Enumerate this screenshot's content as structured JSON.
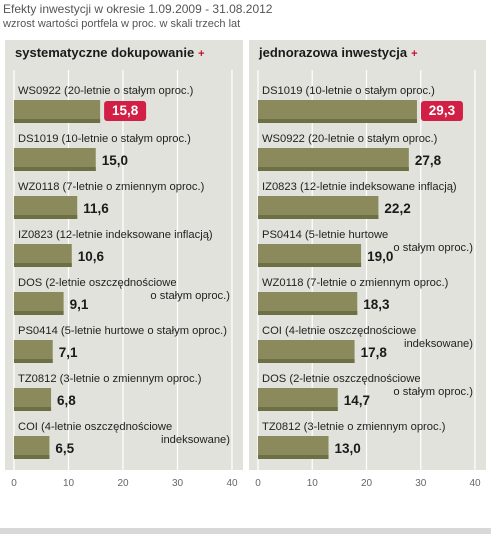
{
  "header": {
    "title": "Efekty inwestycji w okresie 1.09.2009 - 31.08.2012",
    "subtitle": "wzrost wartości portfela w proc. w skali trzech lat"
  },
  "colors": {
    "bar": "#8a8a5c",
    "bar_dark": "#6f6f45",
    "panel_bg": "#e2e2dc",
    "grid": "#ffffff",
    "highlight": "#d21f45",
    "axis_text": "#666666"
  },
  "chart_data": [
    {
      "type": "bar",
      "orientation": "horizontal",
      "title": "systematyczne dokupowanie",
      "title_marker": "+",
      "xlim": [
        0,
        40
      ],
      "xticks": [
        0,
        10,
        20,
        30,
        40
      ],
      "grid": true,
      "categories": [
        "WS0922 (20-letnie o stałym oproc.)",
        "DS1019 (10-letnie o stałym oproc.)",
        "WZ0118 (7-letnie o zmiennym oproc.)",
        "IZ0823 (12-letnie indeksowane inflacją)",
        "DOS (2-letnie oszczędnościowe\no stałym oproc.)",
        "PS0414 (5-letnie hurtowe o stałym oproc.)",
        "TZ0812 (3-letnie o zmiennym oproc.)",
        "COI (4-letnie oszczędnościowe\nindeksowane)"
      ],
      "values": [
        15.8,
        15.0,
        11.6,
        10.6,
        9.1,
        7.1,
        6.8,
        6.5
      ],
      "value_labels": [
        "15,8",
        "15,0",
        "11,6",
        "10,6",
        "9,1",
        "7,1",
        "6,8",
        "6,5"
      ],
      "highlight_index": 0
    },
    {
      "type": "bar",
      "orientation": "horizontal",
      "title": "jednorazowa inwestycja",
      "title_marker": "+",
      "xlim": [
        0,
        40
      ],
      "xticks": [
        0,
        10,
        20,
        30,
        40
      ],
      "grid": true,
      "categories": [
        "DS1019 (10-letnie o stałym oproc.)",
        "WS0922 (20-letnie o stałym oproc.)",
        "IZ0823 (12-letnie indeksowane inflacją)",
        "PS0414 (5-letnie hurtowe\no stałym oproc.)",
        "WZ0118 (7-letnie o zmiennym oproc.)",
        "COI (4-letnie oszczędnościowe\nindeksowane)",
        "DOS (2-letnie oszczędnościowe\no stałym oproc.)",
        "TZ0812 (3-letnie o zmiennym oproc.)"
      ],
      "values": [
        29.3,
        27.8,
        22.2,
        19.0,
        18.3,
        17.8,
        14.7,
        13.0
      ],
      "value_labels": [
        "29,3",
        "27,8",
        "22,2",
        "19,0",
        "18,3",
        "17,8",
        "14,7",
        "13,0"
      ],
      "highlight_index": 0
    }
  ]
}
